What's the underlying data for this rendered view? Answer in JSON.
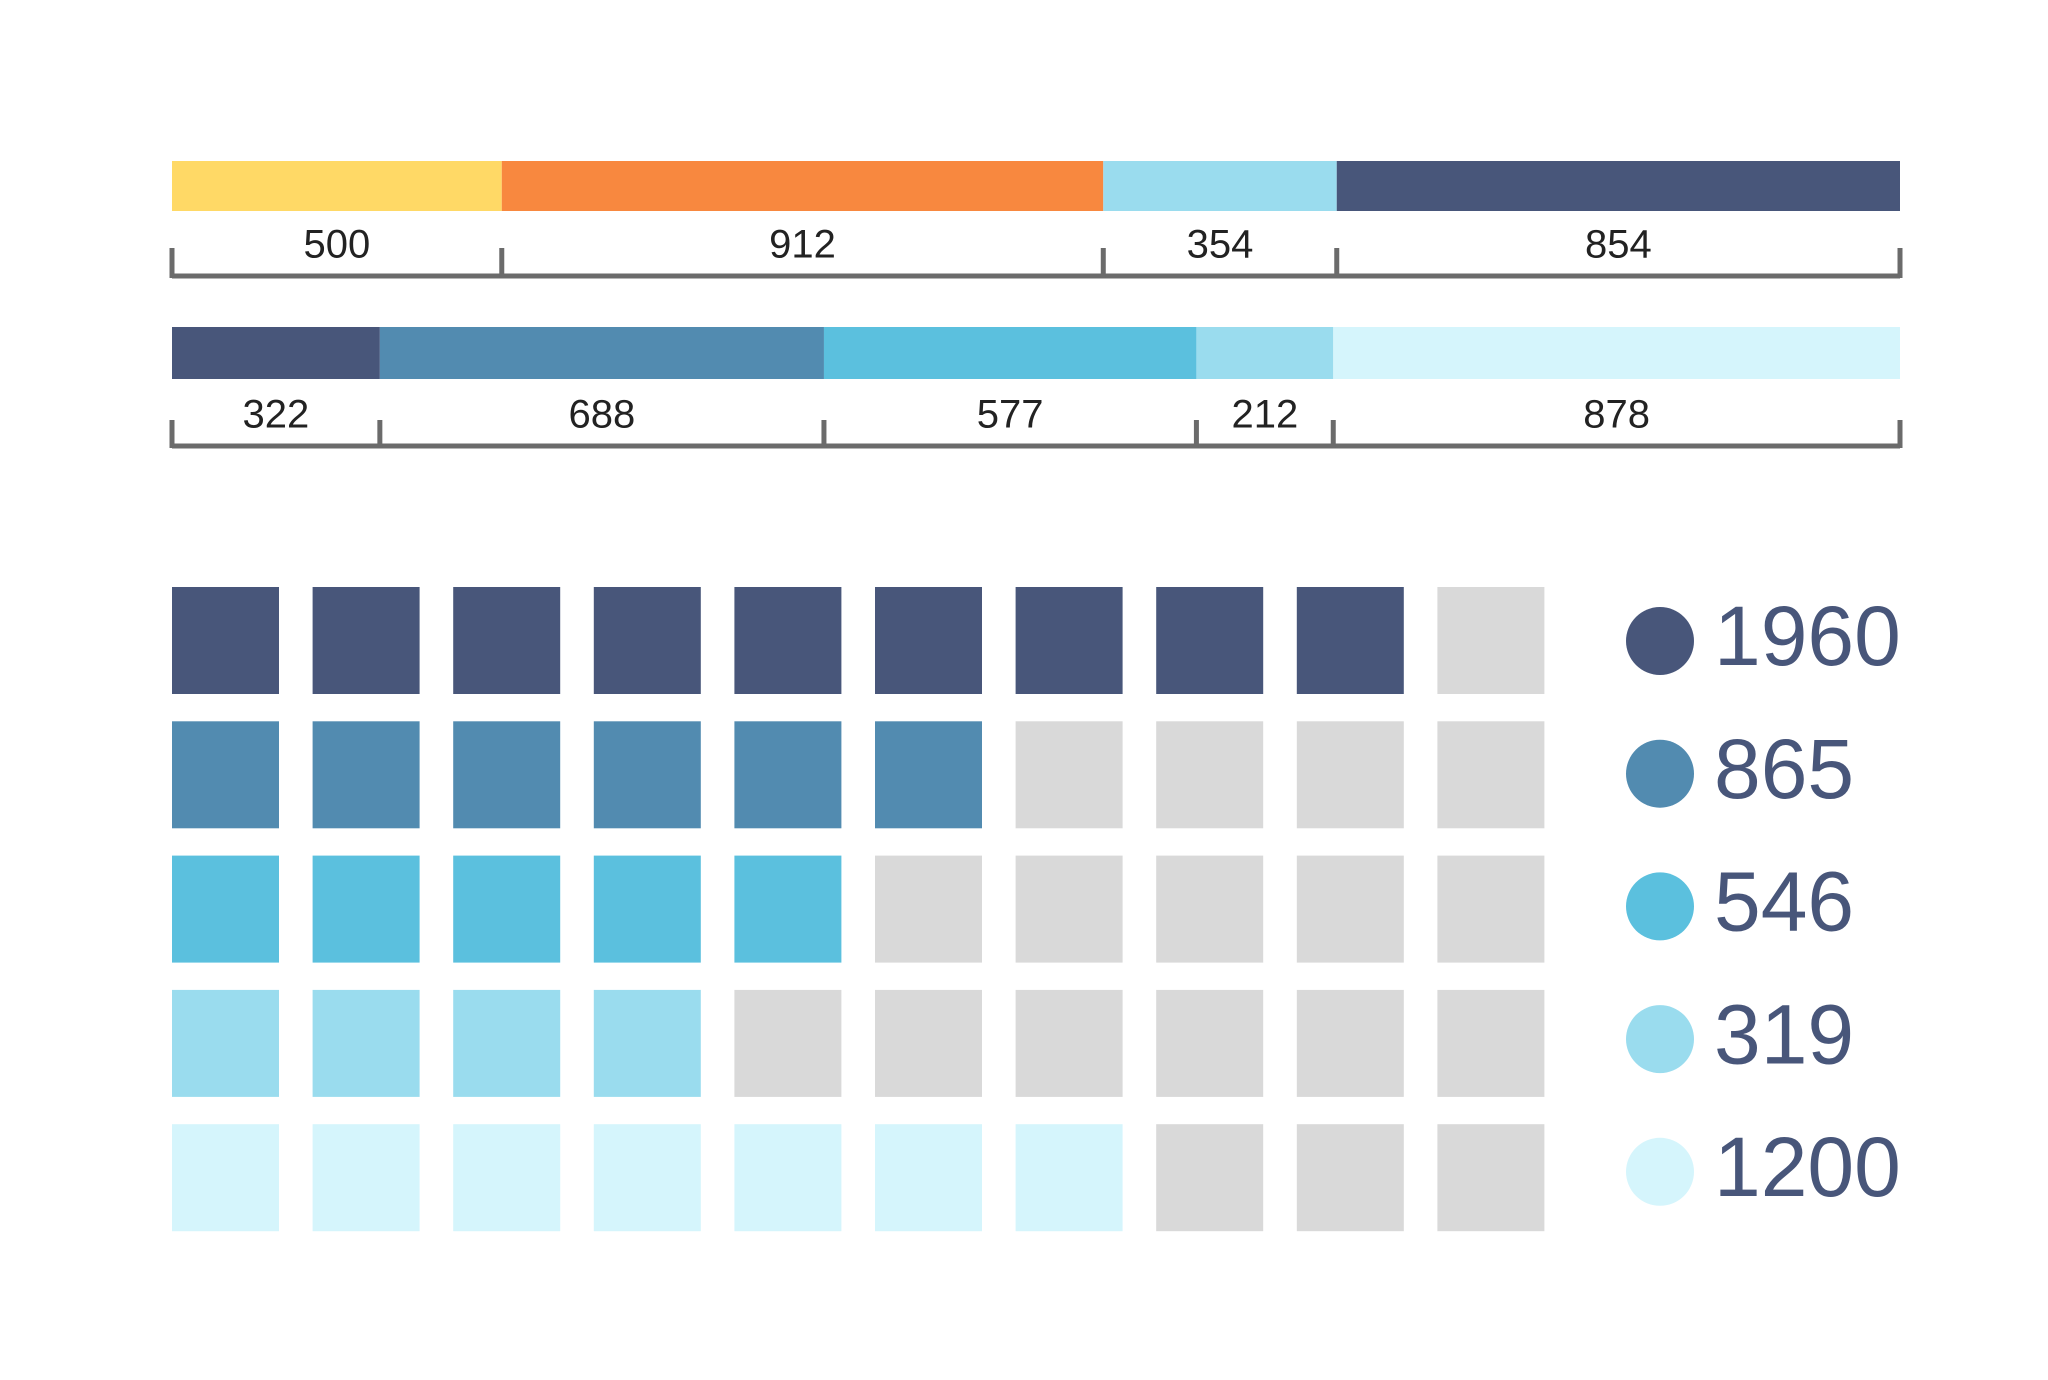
{
  "chart_data": [
    {
      "type": "stacked-bar",
      "values": [
        500,
        912,
        354,
        854
      ],
      "colors": [
        "#ffd966",
        "#f8883f",
        "#9adcee",
        "#48567a"
      ]
    },
    {
      "type": "stacked-bar",
      "values": [
        322,
        688,
        577,
        212,
        878
      ],
      "colors": [
        "#48567a",
        "#528bb0",
        "#5bc0de",
        "#9adcee",
        "#d5f5fc"
      ]
    },
    {
      "type": "waffle",
      "total": 10,
      "empty_color": "#d9d9d9",
      "series": [
        {
          "name": "1960",
          "color": "#48567a",
          "filled": 9
        },
        {
          "name": "865",
          "color": "#528bb0",
          "filled": 6
        },
        {
          "name": "546",
          "color": "#5bc0de",
          "filled": 5
        },
        {
          "name": "319",
          "color": "#9adcee",
          "filled": 4
        },
        {
          "name": "1200",
          "color": "#d5f5fc",
          "filled": 7
        }
      ]
    }
  ]
}
